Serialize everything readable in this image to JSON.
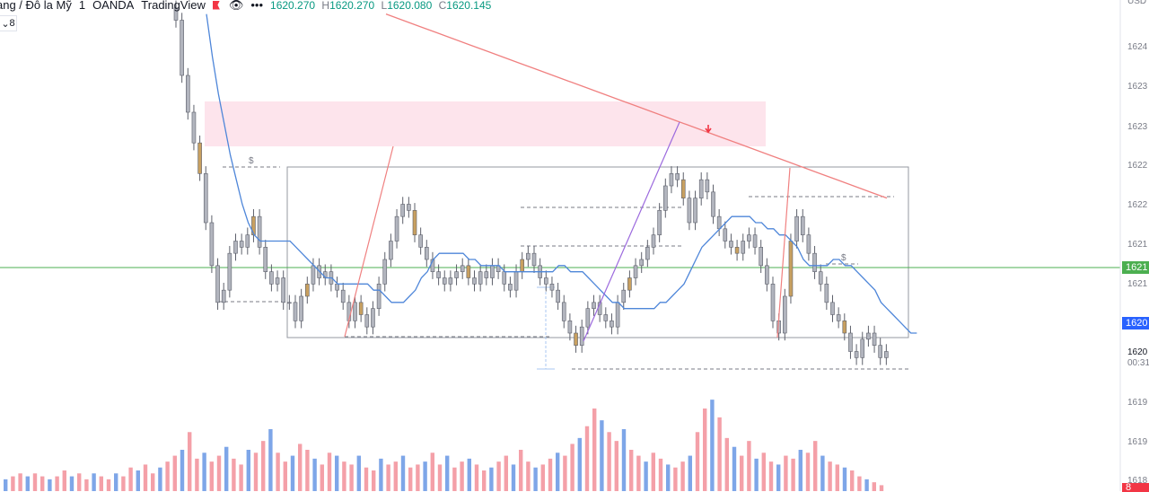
{
  "header": {
    "symbol": "ang / Đô la Mỹ",
    "interval": "1",
    "broker": "OANDA",
    "platform": "TradingView",
    "open_label": "",
    "high_label": "H",
    "high": "1620.270",
    "low_label": "L",
    "low": "1620.080",
    "close_label": "C",
    "close": "1620.145",
    "open": "1620.270",
    "eye_icon": "eye-icon",
    "more_icon": "more-icon",
    "indicator_count": "8"
  },
  "price_axis": {
    "currency": "USD",
    "ticks": [
      "1624",
      "1623",
      "1623",
      "1622",
      "1622",
      "1621",
      "1621",
      "1620",
      "1619",
      "1619",
      "1618"
    ],
    "green_tag": "1621",
    "blue_tag": "1620",
    "last_price": "1620",
    "countdown": "00:31",
    "red_tag": "8"
  },
  "colors": {
    "up": "#089981",
    "down": "#f23645",
    "candle_body": "#b2b5be",
    "volume_up": "#7ea6e8",
    "volume_down": "#f4a0a8",
    "ma_fast": "#4e86d9",
    "ma_slow": "#f08080",
    "zone": "#fde4ec",
    "horizontal": "#4caf50"
  },
  "chart_data": {
    "type": "candlestick",
    "note_levels": {
      "resistance_zone": [
        1622.6,
        1623.3
      ],
      "range_box": [
        1620.3,
        1622.3
      ],
      "horizontal_line": 1621.2
    },
    "series": [
      {
        "values": [
          1625.5,
          1624.6,
          1624.0,
          1623.5,
          1623.0,
          1622.2,
          1621.5,
          1620.9,
          1621.1,
          1621.7,
          1621.9,
          1621.8,
          1622.0,
          1622.3,
          1621.8,
          1621.4,
          1621.2,
          1621.3,
          1620.9,
          1620.9,
          1620.6,
          1621.0,
          1621.2,
          1621.5,
          1621.3,
          1621.4,
          1621.2,
          1621.1,
          1620.9,
          1620.6,
          1620.9,
          1620.7,
          1620.5,
          1620.8,
          1621.2,
          1621.6,
          1621.9,
          1622.3,
          1622.5,
          1622.4,
          1622.0,
          1621.8,
          1621.6,
          1621.4,
          1621.3,
          1621.2,
          1621.3,
          1621.4,
          1621.5,
          1621.3,
          1621.2,
          1621.4,
          1621.3,
          1621.5,
          1621.4,
          1621.2,
          1621.1,
          1621.4,
          1621.6,
          1621.7,
          1621.5,
          1621.3,
          1621.2,
          1621.1,
          1620.9,
          1620.6,
          1620.4,
          1620.2,
          1620.5,
          1620.8,
          1620.9,
          1620.7,
          1620.6,
          1620.5,
          1620.9,
          1621.1,
          1621.3,
          1621.5,
          1621.6,
          1621.8,
          1622.0,
          1622.4,
          1622.8,
          1623.0,
          1622.9,
          1622.6,
          1622.2,
          1622.6,
          1622.9,
          1622.7,
          1622.3,
          1622.1,
          1621.9,
          1621.8,
          1621.7,
          1621.9,
          1622.0,
          1621.8,
          1621.5,
          1621.2,
          1620.6,
          1620.4,
          1621.0,
          1621.9,
          1622.3,
          1622.0,
          1621.7,
          1621.4,
          1621.2,
          1620.9,
          1620.7,
          1620.6,
          1620.4,
          1620.1,
          1620.0,
          1620.3,
          1620.4,
          1620.2,
          1620.0,
          1620.1
        ]
      },
      {
        "name": "",
        "values": [
          1625.6,
          1624.9,
          1624.3,
          1623.8,
          1623.3,
          1622.9,
          1622.5,
          1622.2,
          1622.0,
          1621.9,
          1621.9,
          1621.9,
          1621.9,
          1621.9,
          1621.9,
          1621.8,
          1621.7,
          1621.6,
          1621.5,
          1621.4,
          1621.3,
          1621.3,
          1621.2,
          1621.2,
          1621.2,
          1621.2,
          1621.2,
          1621.2,
          1621.1,
          1621.1,
          1621.0,
          1620.9,
          1620.9,
          1620.9,
          1621.0,
          1621.1,
          1621.3,
          1621.4,
          1621.6,
          1621.7,
          1621.7,
          1621.7,
          1621.7,
          1621.7,
          1621.6,
          1621.6,
          1621.5,
          1621.5,
          1621.5,
          1621.5,
          1621.4,
          1621.4,
          1621.4,
          1621.4,
          1621.4,
          1621.4,
          1621.4,
          1621.4,
          1621.4,
          1621.5,
          1621.5,
          1621.4,
          1621.4,
          1621.4,
          1621.3,
          1621.2,
          1621.1,
          1621.0,
          1620.9,
          1620.9,
          1620.8,
          1620.8,
          1620.8,
          1620.8,
          1620.8,
          1620.8,
          1620.9,
          1620.9,
          1621.0,
          1621.1,
          1621.2,
          1621.4,
          1621.6,
          1621.8,
          1621.9,
          1622.0,
          1622.1,
          1622.2,
          1622.3,
          1622.3,
          1622.3,
          1622.3,
          1622.2,
          1622.2,
          1622.1,
          1622.1,
          1622.0,
          1622.0,
          1621.9,
          1621.8,
          1621.6,
          1621.5,
          1621.5,
          1621.5,
          1621.5,
          1621.6,
          1621.6,
          1621.5,
          1621.5,
          1621.4,
          1621.3,
          1621.2,
          1621.1,
          1620.9,
          1620.8,
          1620.7,
          1620.6,
          1620.5,
          1620.4,
          1620.4
        ]
      },
      {
        "name": "",
        "values": [
          1625.6,
          1625.5,
          1625.4,
          1625.3,
          1625.2,
          1625.1,
          1625.0,
          1624.9,
          1624.8,
          1624.7,
          1624.6,
          1624.5,
          1624.4,
          1624.3,
          1624.2,
          1624.1,
          1624.0,
          1623.9,
          1623.8,
          1623.7,
          1623.6,
          1623.5,
          1623.4,
          1623.3,
          1623.2,
          1623.1,
          1623.0,
          1622.9,
          1622.8,
          1622.7,
          1622.6
        ]
      }
    ],
    "volume": [
      4,
      5,
      6,
      5,
      6,
      5,
      4,
      5,
      7,
      5,
      6,
      4,
      6,
      5,
      4,
      6,
      5,
      8,
      7,
      9,
      6,
      8,
      10,
      12,
      14,
      20,
      11,
      13,
      10,
      12,
      15,
      11,
      9,
      14,
      13,
      17,
      21,
      13,
      10,
      12,
      16,
      14,
      11,
      9,
      13,
      12,
      10,
      9,
      12,
      8,
      7,
      11,
      9,
      10,
      12,
      8,
      9,
      10,
      13,
      9,
      12,
      8,
      10,
      11,
      9,
      7,
      8,
      10,
      12,
      9,
      14,
      10,
      8,
      9,
      11,
      13,
      12,
      16,
      18,
      22,
      28,
      24,
      20,
      17,
      21,
      14,
      12,
      10,
      13,
      11,
      9,
      8,
      10,
      12,
      20,
      28,
      31,
      25,
      18,
      15,
      12,
      17,
      11,
      13,
      10,
      9,
      12,
      11,
      14,
      13,
      17,
      12,
      10,
      9,
      8,
      7,
      5,
      4,
      3,
      2
    ]
  }
}
